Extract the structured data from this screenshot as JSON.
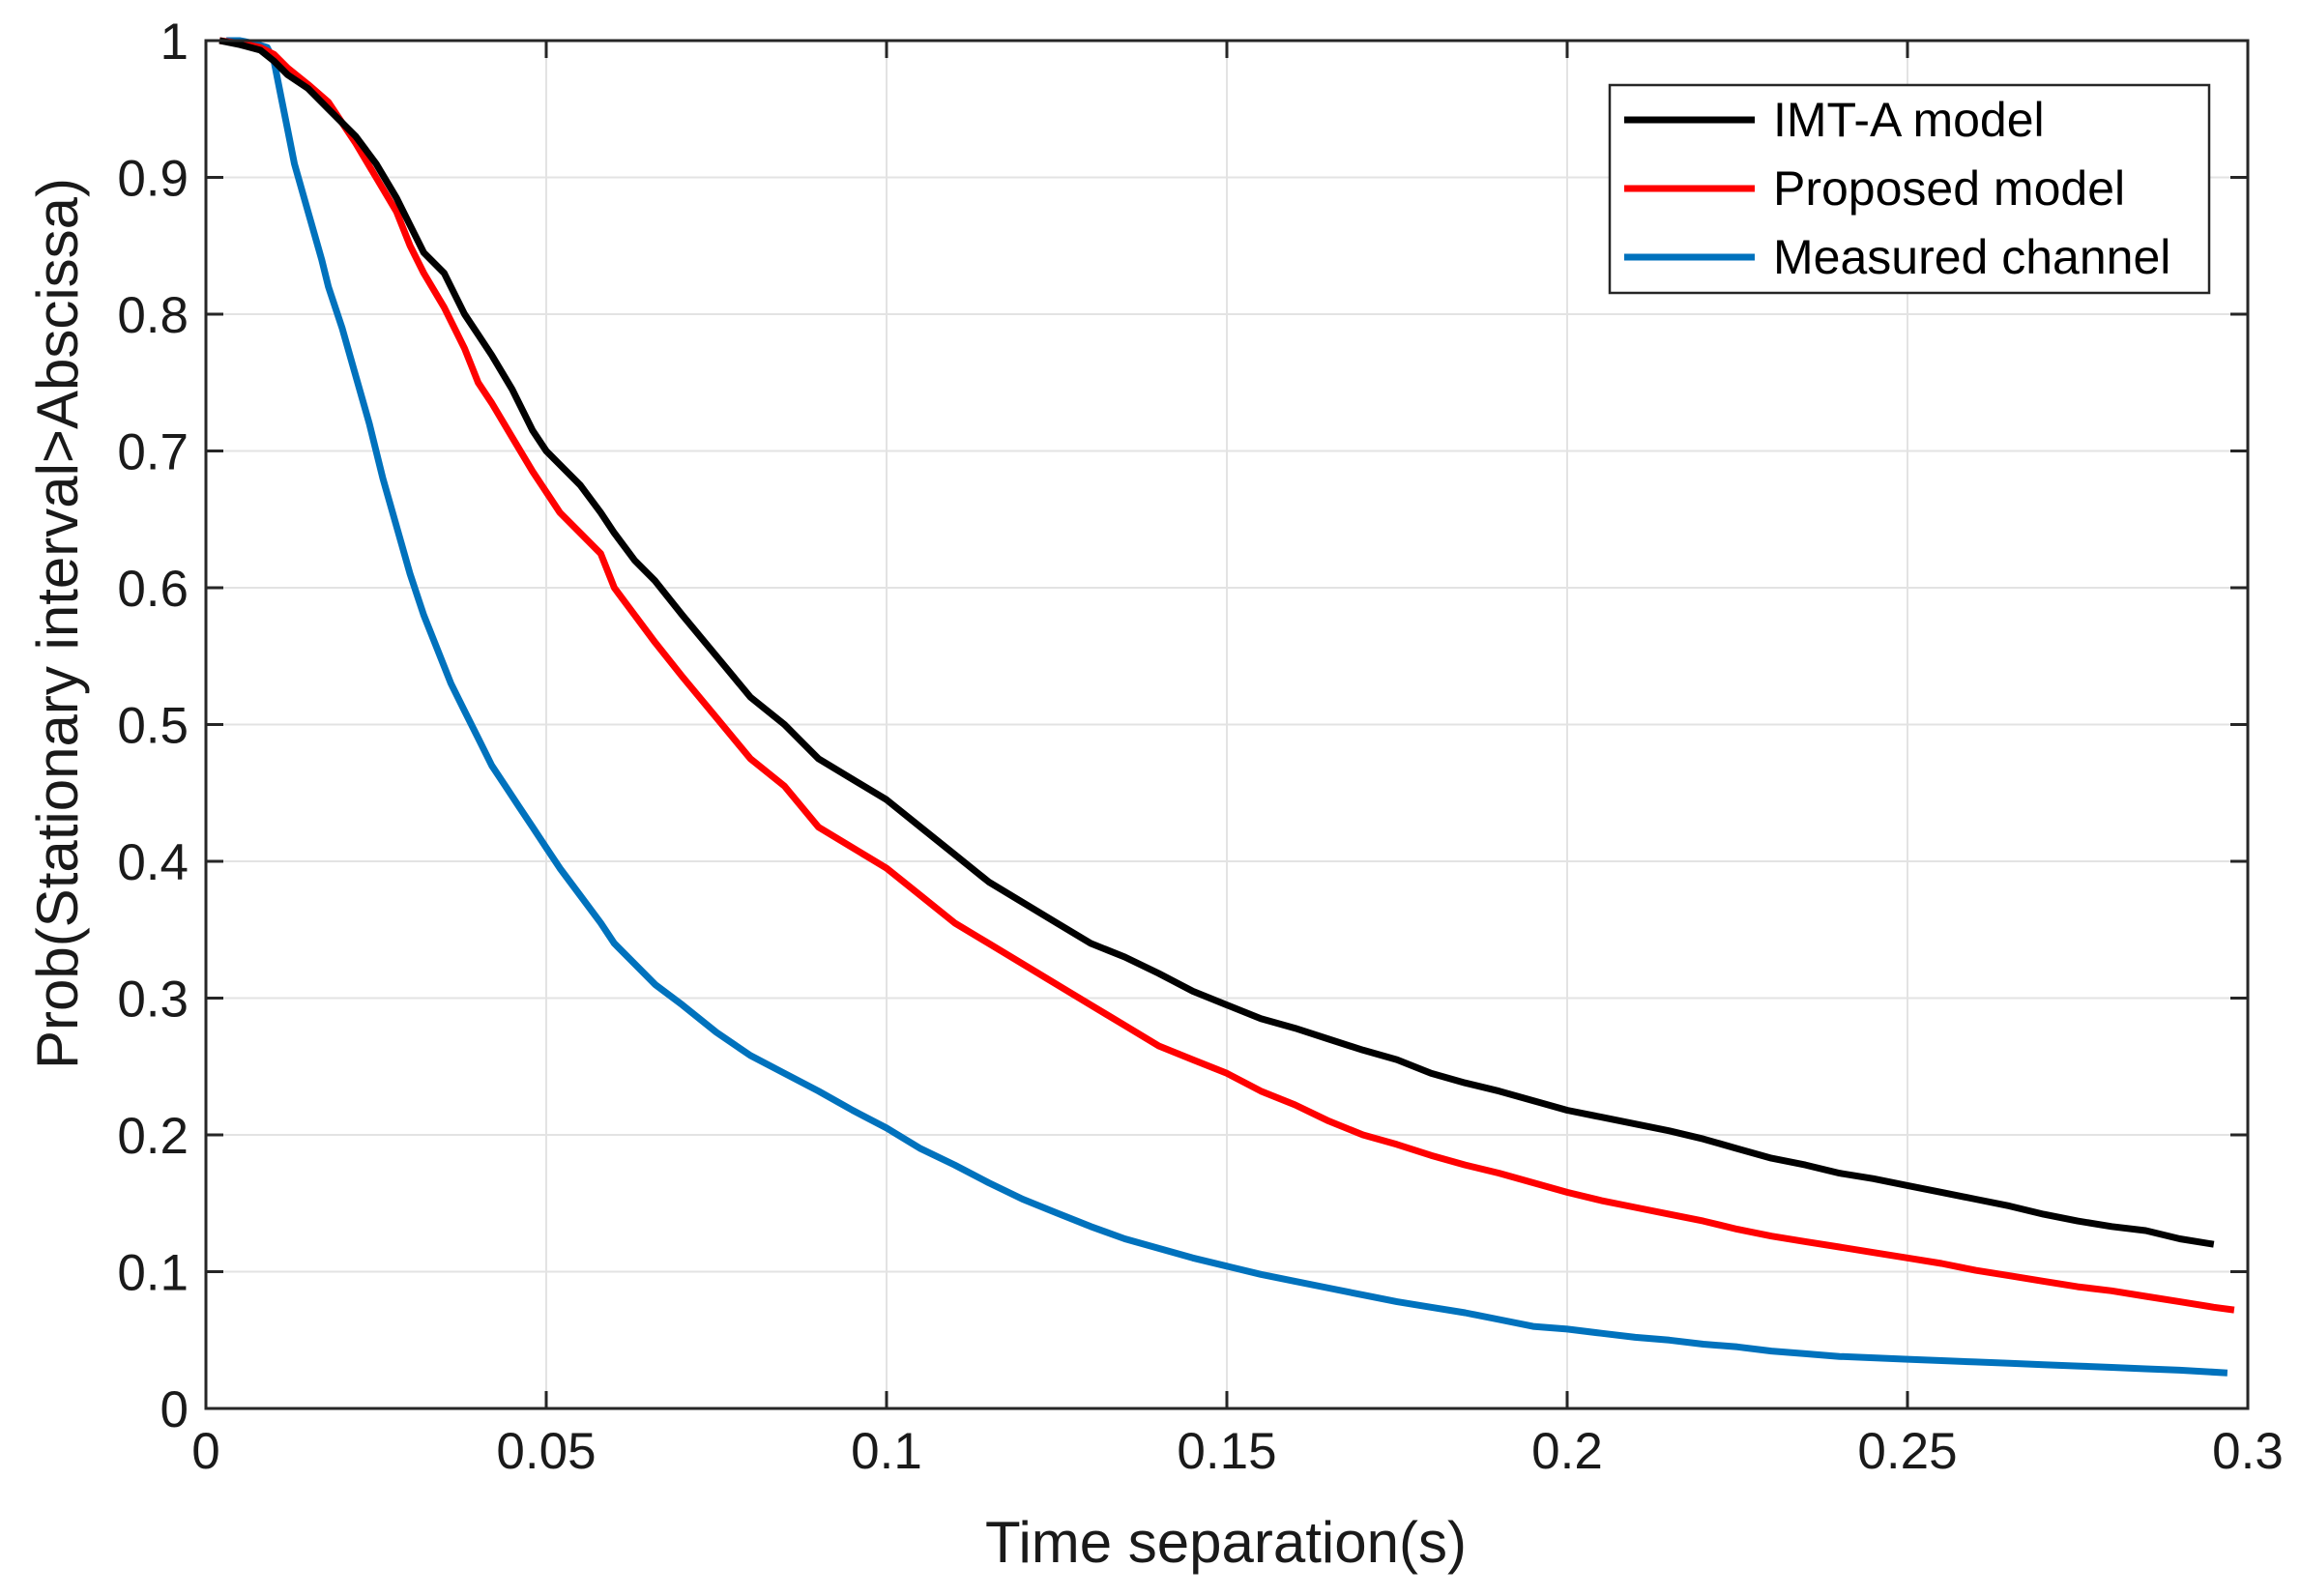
{
  "chart_data": {
    "type": "line",
    "title": "",
    "xlabel": "Time separation(s)",
    "ylabel": "Prob(Stationary interval>Abscissa)",
    "xlim": [
      0,
      0.3
    ],
    "ylim": [
      0,
      1
    ],
    "xticks": [
      0,
      0.05,
      0.1,
      0.15,
      0.2,
      0.25,
      0.3
    ],
    "xtick_labels": [
      "0",
      "0.05",
      "0.1",
      "0.15",
      "0.2",
      "0.25",
      "0.3"
    ],
    "yticks": [
      0,
      0.1,
      0.2,
      0.3,
      0.4,
      0.5,
      0.6,
      0.7,
      0.8,
      0.9,
      1
    ],
    "ytick_labels": [
      "0",
      "0.1",
      "0.2",
      "0.3",
      "0.4",
      "0.5",
      "0.6",
      "0.7",
      "0.8",
      "0.9",
      "1"
    ],
    "grid": true,
    "legend_position": "top-right",
    "series": [
      {
        "name": "IMT-A model",
        "color": "#000000",
        "x": [
          0.002,
          0.005,
          0.008,
          0.01,
          0.012,
          0.015,
          0.018,
          0.02,
          0.022,
          0.025,
          0.028,
          0.03,
          0.032,
          0.035,
          0.038,
          0.04,
          0.042,
          0.045,
          0.048,
          0.05,
          0.052,
          0.055,
          0.058,
          0.06,
          0.063,
          0.066,
          0.07,
          0.075,
          0.08,
          0.085,
          0.09,
          0.095,
          0.1,
          0.105,
          0.11,
          0.115,
          0.12,
          0.125,
          0.13,
          0.135,
          0.14,
          0.145,
          0.15,
          0.155,
          0.16,
          0.165,
          0.17,
          0.175,
          0.18,
          0.185,
          0.19,
          0.195,
          0.2,
          0.205,
          0.21,
          0.215,
          0.22,
          0.225,
          0.23,
          0.235,
          0.24,
          0.245,
          0.25,
          0.255,
          0.26,
          0.265,
          0.27,
          0.275,
          0.28,
          0.285,
          0.29,
          0.295
        ],
        "y": [
          1.0,
          0.997,
          0.993,
          0.985,
          0.975,
          0.965,
          0.95,
          0.94,
          0.93,
          0.91,
          0.885,
          0.865,
          0.845,
          0.83,
          0.8,
          0.785,
          0.77,
          0.745,
          0.715,
          0.7,
          0.69,
          0.675,
          0.655,
          0.64,
          0.62,
          0.605,
          0.58,
          0.55,
          0.52,
          0.5,
          0.475,
          0.46,
          0.445,
          0.425,
          0.405,
          0.385,
          0.37,
          0.355,
          0.34,
          0.33,
          0.318,
          0.305,
          0.295,
          0.285,
          0.278,
          0.27,
          0.262,
          0.255,
          0.245,
          0.238,
          0.232,
          0.225,
          0.218,
          0.213,
          0.208,
          0.203,
          0.197,
          0.19,
          0.183,
          0.178,
          0.172,
          0.168,
          0.163,
          0.158,
          0.153,
          0.148,
          0.142,
          0.137,
          0.133,
          0.13,
          0.124,
          0.12
        ]
      },
      {
        "name": "Proposed model",
        "color": "#ff0000",
        "x": [
          0.002,
          0.005,
          0.008,
          0.01,
          0.012,
          0.015,
          0.018,
          0.02,
          0.022,
          0.025,
          0.028,
          0.03,
          0.032,
          0.035,
          0.038,
          0.04,
          0.042,
          0.045,
          0.048,
          0.05,
          0.052,
          0.055,
          0.058,
          0.06,
          0.063,
          0.066,
          0.07,
          0.075,
          0.08,
          0.085,
          0.09,
          0.095,
          0.1,
          0.105,
          0.11,
          0.115,
          0.12,
          0.125,
          0.13,
          0.135,
          0.14,
          0.145,
          0.15,
          0.155,
          0.16,
          0.165,
          0.17,
          0.175,
          0.18,
          0.185,
          0.19,
          0.195,
          0.2,
          0.205,
          0.21,
          0.215,
          0.22,
          0.225,
          0.23,
          0.235,
          0.24,
          0.245,
          0.25,
          0.255,
          0.26,
          0.265,
          0.27,
          0.275,
          0.28,
          0.285,
          0.29,
          0.295,
          0.298
        ],
        "y": [
          1.0,
          0.998,
          0.995,
          0.99,
          0.98,
          0.968,
          0.955,
          0.94,
          0.925,
          0.9,
          0.875,
          0.85,
          0.83,
          0.805,
          0.775,
          0.75,
          0.735,
          0.71,
          0.685,
          0.67,
          0.655,
          0.64,
          0.625,
          0.6,
          0.58,
          0.56,
          0.535,
          0.505,
          0.475,
          0.455,
          0.425,
          0.41,
          0.395,
          0.375,
          0.355,
          0.34,
          0.325,
          0.31,
          0.295,
          0.28,
          0.265,
          0.255,
          0.245,
          0.232,
          0.222,
          0.21,
          0.2,
          0.193,
          0.185,
          0.178,
          0.172,
          0.165,
          0.158,
          0.152,
          0.147,
          0.142,
          0.137,
          0.131,
          0.126,
          0.122,
          0.118,
          0.114,
          0.11,
          0.106,
          0.101,
          0.097,
          0.093,
          0.089,
          0.086,
          0.082,
          0.078,
          0.074,
          0.072
        ]
      },
      {
        "name": "Measured channel",
        "color": "#0072bd",
        "x": [
          0.003,
          0.005,
          0.007,
          0.009,
          0.01,
          0.011,
          0.012,
          0.013,
          0.015,
          0.017,
          0.018,
          0.02,
          0.022,
          0.024,
          0.026,
          0.028,
          0.03,
          0.032,
          0.034,
          0.036,
          0.038,
          0.04,
          0.042,
          0.044,
          0.046,
          0.048,
          0.05,
          0.052,
          0.055,
          0.058,
          0.06,
          0.063,
          0.066,
          0.07,
          0.075,
          0.08,
          0.085,
          0.09,
          0.095,
          0.1,
          0.105,
          0.11,
          0.115,
          0.12,
          0.125,
          0.13,
          0.135,
          0.14,
          0.145,
          0.15,
          0.155,
          0.16,
          0.165,
          0.17,
          0.175,
          0.18,
          0.185,
          0.19,
          0.195,
          0.2,
          0.205,
          0.21,
          0.215,
          0.22,
          0.225,
          0.23,
          0.235,
          0.24,
          0.245,
          0.25,
          0.255,
          0.26,
          0.265,
          0.27,
          0.275,
          0.28,
          0.285,
          0.29,
          0.297
        ],
        "y": [
          1.0,
          1.0,
          0.998,
          0.995,
          0.985,
          0.96,
          0.935,
          0.91,
          0.875,
          0.84,
          0.82,
          0.79,
          0.755,
          0.72,
          0.68,
          0.645,
          0.61,
          0.58,
          0.555,
          0.53,
          0.51,
          0.49,
          0.47,
          0.455,
          0.44,
          0.425,
          0.41,
          0.395,
          0.375,
          0.355,
          0.34,
          0.325,
          0.31,
          0.295,
          0.275,
          0.258,
          0.245,
          0.232,
          0.218,
          0.205,
          0.19,
          0.178,
          0.165,
          0.153,
          0.143,
          0.133,
          0.124,
          0.117,
          0.11,
          0.104,
          0.098,
          0.093,
          0.088,
          0.083,
          0.078,
          0.074,
          0.07,
          0.065,
          0.06,
          0.058,
          0.055,
          0.052,
          0.05,
          0.047,
          0.045,
          0.042,
          0.04,
          0.038,
          0.037,
          0.036,
          0.035,
          0.034,
          0.033,
          0.032,
          0.031,
          0.03,
          0.029,
          0.028,
          0.026
        ]
      }
    ]
  }
}
